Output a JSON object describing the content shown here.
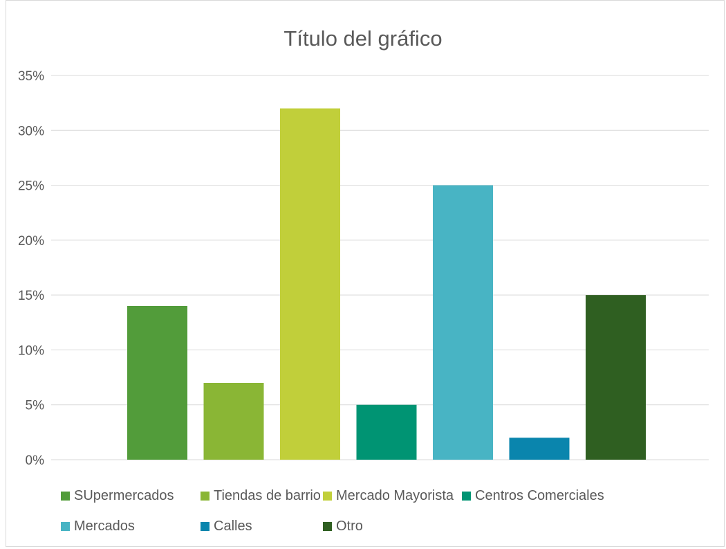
{
  "chart_data": {
    "type": "bar",
    "title": "Título del gráfico",
    "categories": [
      "SUpermercados",
      "Tiendas de barrio",
      "Mercado Mayorista",
      "Centros Comerciales",
      "Mercados",
      "Calles",
      "Otro"
    ],
    "values": [
      14,
      7,
      32,
      5,
      25,
      2,
      15
    ],
    "colors": [
      "#529c3a",
      "#8ab635",
      "#c1cf3a",
      "#009473",
      "#48b4c4",
      "#0a85ad",
      "#2f5f21"
    ],
    "ylim": [
      0,
      35
    ],
    "yticks": [
      "0%",
      "5%",
      "10%",
      "15%",
      "20%",
      "25%",
      "30%",
      "35%"
    ],
    "grid": true,
    "legend_position": "bottom"
  }
}
